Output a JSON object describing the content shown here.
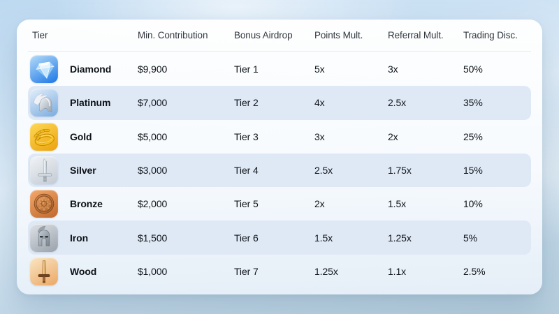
{
  "table": {
    "columns": [
      "Tier",
      "Min. Contribution",
      "Bonus Airdrop",
      "Points Mult.",
      "Referral Mult.",
      "Trading Disc."
    ],
    "rows": [
      {
        "tier": "Diamond",
        "icon": "diamond-gem-icon",
        "icon_bg": {
          "from": "#b5dcf8",
          "to": "#1c76e6"
        },
        "min_contribution": "$9,900",
        "bonus_airdrop": "Tier 1",
        "points_mult": "5x",
        "referral_mult": "3x",
        "trading_disc": "50%"
      },
      {
        "tier": "Platinum",
        "icon": "winged-helmet-icon",
        "icon_bg": {
          "from": "#e3effb",
          "to": "#79abde"
        },
        "min_contribution": "$7,000",
        "bonus_airdrop": "Tier 2",
        "points_mult": "4x",
        "referral_mult": "2.5x",
        "trading_disc": "35%"
      },
      {
        "tier": "Gold",
        "icon": "laurel-wreath-icon",
        "icon_bg": {
          "from": "#ffd957",
          "to": "#eba20f"
        },
        "min_contribution": "$5,000",
        "bonus_airdrop": "Tier 3",
        "points_mult": "3x",
        "referral_mult": "2x",
        "trading_disc": "25%"
      },
      {
        "tier": "Silver",
        "icon": "sword-icon",
        "icon_bg": {
          "from": "#f1f4f7",
          "to": "#c2cad3"
        },
        "min_contribution": "$3,000",
        "bonus_airdrop": "Tier 4",
        "points_mult": "2.5x",
        "referral_mult": "1.75x",
        "trading_disc": "15%"
      },
      {
        "tier": "Bronze",
        "icon": "round-shield-icon",
        "icon_bg": {
          "from": "#f4a96c",
          "to": "#c0672c"
        },
        "min_contribution": "$2,000",
        "bonus_airdrop": "Tier 5",
        "points_mult": "2x",
        "referral_mult": "1.5x",
        "trading_disc": "10%"
      },
      {
        "tier": "Iron",
        "icon": "spartan-helmet-icon",
        "icon_bg": {
          "from": "#dde2e7",
          "to": "#99a1aa"
        },
        "min_contribution": "$1,500",
        "bonus_airdrop": "Tier 6",
        "points_mult": "1.5x",
        "referral_mult": "1.25x",
        "trading_disc": "5%"
      },
      {
        "tier": "Wood",
        "icon": "wooden-sword-icon",
        "icon_bg": {
          "from": "#f9e6c4",
          "to": "#eca764"
        },
        "min_contribution": "$1,000",
        "bonus_airdrop": "Tier 7",
        "points_mult": "1.25x",
        "referral_mult": "1.1x",
        "trading_disc": "2.5%"
      }
    ]
  },
  "colors": {
    "row_band": "#dfe9f6",
    "card_bg": "#fbfdff",
    "header_text": "#33383e",
    "cell_text": "#10151a",
    "sky_top": "#bdd9f1",
    "sky_bottom": "#b6cedd"
  }
}
